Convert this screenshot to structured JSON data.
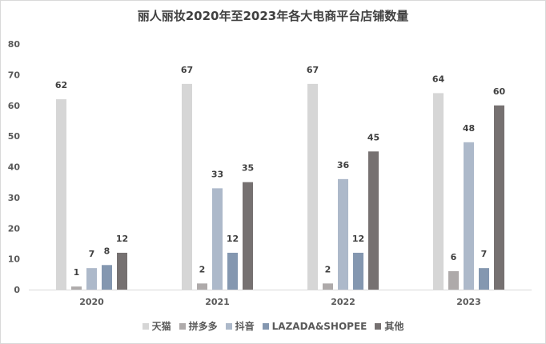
{
  "chart_data": {
    "type": "bar",
    "title": "丽人丽妆2020年至2023年各大电商平台店铺数量",
    "categories": [
      "2020",
      "2021",
      "2022",
      "2023"
    ],
    "ylim": [
      0,
      80
    ],
    "yticks": [
      0,
      10,
      20,
      30,
      40,
      50,
      60,
      70,
      80
    ],
    "grid": false,
    "legend_position": "bottom",
    "series": [
      {
        "name": "天猫",
        "color": "#d6d6d6",
        "values": [
          62,
          67,
          67,
          64
        ]
      },
      {
        "name": "拼多多",
        "color": "#aeaaaa",
        "values": [
          1,
          2,
          2,
          6
        ]
      },
      {
        "name": "抖音",
        "color": "#adb9ca",
        "values": [
          7,
          33,
          36,
          48
        ]
      },
      {
        "name": "LAZADA&SHOPEE",
        "color": "#8497b0",
        "values": [
          8,
          12,
          12,
          7
        ]
      },
      {
        "name": "其他",
        "color": "#767171",
        "values": [
          12,
          35,
          45,
          60
        ]
      }
    ]
  }
}
